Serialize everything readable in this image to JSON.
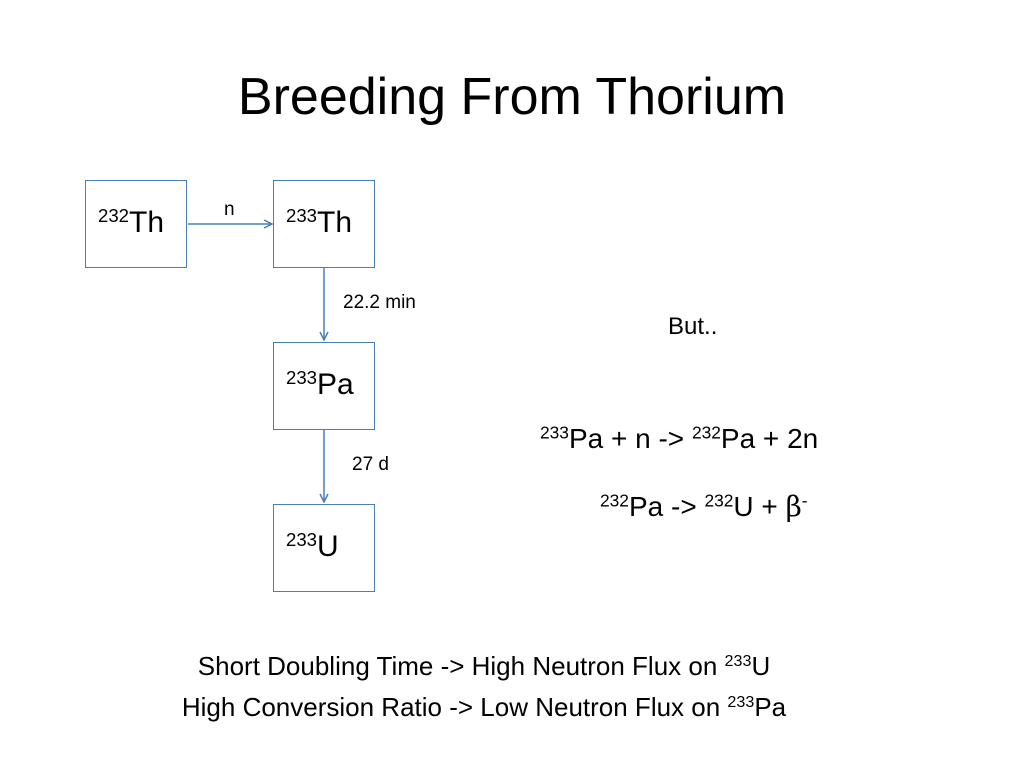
{
  "slide": {
    "title": "Breeding From Thorium"
  },
  "nodes": {
    "th232": {
      "mass": "232",
      "symbol": "Th"
    },
    "th233": {
      "mass": "233",
      "symbol": "Th"
    },
    "pa233": {
      "mass": "233",
      "symbol": "Pa"
    },
    "u233": {
      "mass": "233",
      "symbol": "U"
    }
  },
  "edges": {
    "capture_label": "n",
    "th_decay_label": "22.2 min",
    "pa_decay_label": "27 d"
  },
  "side_note": {
    "but": "But..",
    "eq1": {
      "mass_a": "233",
      "text_a": "Pa + n -> ",
      "mass_b": "232",
      "text_b": "Pa + 2n"
    },
    "eq2": {
      "mass_a": "232",
      "text_a": "Pa -> ",
      "mass_b": "232",
      "text_b": "U + ",
      "beta": "β",
      "beta_sign": "-"
    }
  },
  "footer": {
    "line1_text": "Short Doubling Time -> High Neutron Flux on ",
    "line1_mass": "233",
    "line1_symbol": "U",
    "line2_text": "High Conversion Ratio -> Low Neutron Flux on ",
    "line2_mass": "233",
    "line2_symbol": "Pa"
  },
  "colors": {
    "box_border": "#4a7ebb",
    "arrow": "#4a7ebb"
  }
}
